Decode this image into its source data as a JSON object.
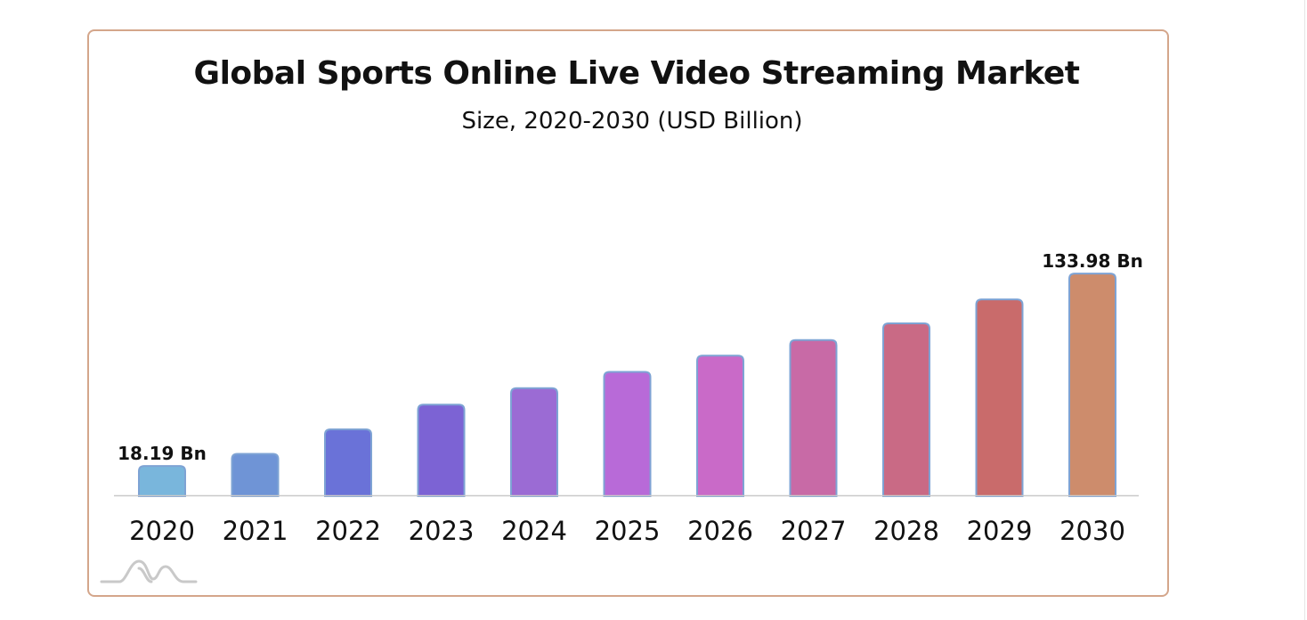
{
  "chart_data": {
    "type": "bar",
    "title": "Global Sports Online Live Video Streaming Market",
    "subtitle": "Size, 2020-2030 (USD Billion)",
    "categories": [
      "2020",
      "2021",
      "2022",
      "2023",
      "2024",
      "2025",
      "2026",
      "2027",
      "2028",
      "2029",
      "2030"
    ],
    "values": [
      18.19,
      25.5,
      40.2,
      55.1,
      65.0,
      74.8,
      84.6,
      94.0,
      104.0,
      118.4,
      133.98
    ],
    "data_labels": {
      "0": "18.19 Bn",
      "10": "133.98 Bn"
    },
    "colors": [
      "#79b6dc",
      "#6f94d6",
      "#6a72d8",
      "#7c63d4",
      "#9b6bd4",
      "#b86ad8",
      "#c96ac8",
      "#c86aa6",
      "#c96a85",
      "#c96b6b",
      "#cd8c6c"
    ],
    "bar_border_color": "#7ea3d4",
    "xlabel": "",
    "ylabel": "",
    "ylim": [
      0,
      140
    ],
    "grid": false,
    "legend": "none"
  }
}
